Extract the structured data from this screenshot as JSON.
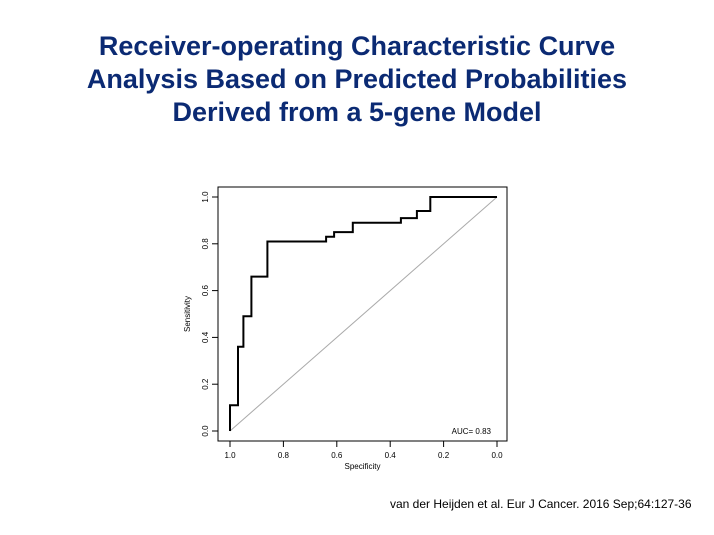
{
  "slide": {
    "title_lines": [
      "Receiver-operating Characteristic Curve",
      "Analysis Based on Predicted Probabilities",
      "Derived from a 5-gene Model"
    ],
    "citation": "van der Heijden et al. Eur J Cancer. 2016 Sep;64:127-36",
    "title_color": "#0b2a73"
  },
  "chart_data": {
    "type": "line",
    "title": "",
    "xlabel": "Specificity",
    "ylabel": "Sensitivity",
    "xlim": [
      1.0,
      0.0
    ],
    "ylim": [
      0.0,
      1.0
    ],
    "x_reversed": true,
    "xticks": [
      "1.0",
      "0.8",
      "0.6",
      "0.4",
      "0.2",
      "0.0"
    ],
    "yticks": [
      "0.0",
      "0.2",
      "0.4",
      "0.6",
      "0.8",
      "1.0"
    ],
    "grid": false,
    "annotation": "AUC= 0.83",
    "series": [
      {
        "specificity": [
          1.0,
          1.0,
          0.97,
          0.97,
          0.95,
          0.95,
          0.92,
          0.92,
          0.89,
          0.89,
          0.86,
          0.86,
          0.64,
          0.64,
          0.61,
          0.61,
          0.54,
          0.54,
          0.36,
          0.36,
          0.3,
          0.3,
          0.25,
          0.25,
          0.0
        ],
        "sensitivity": [
          0.0,
          0.11,
          0.11,
          0.36,
          0.36,
          0.49,
          0.49,
          0.66,
          0.66,
          0.66,
          0.66,
          0.81,
          0.81,
          0.83,
          0.83,
          0.85,
          0.85,
          0.89,
          0.89,
          0.91,
          0.91,
          0.94,
          0.94,
          1.0,
          1.0
        ],
        "color": "#000000"
      }
    ],
    "reference_line": {
      "specificity": [
        1.0,
        0.0
      ],
      "sensitivity": [
        0.0,
        1.0
      ],
      "color": "#aaaaaa"
    }
  }
}
